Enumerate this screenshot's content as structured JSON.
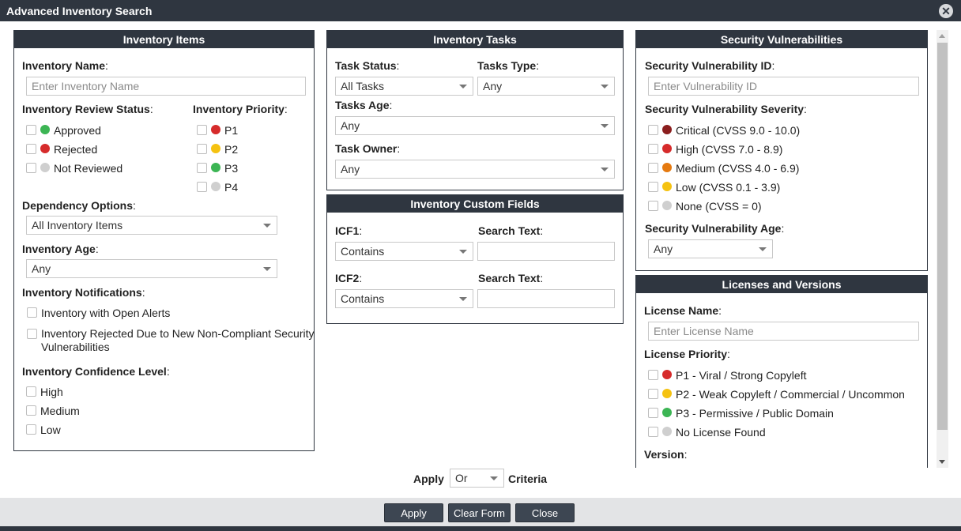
{
  "dialog": {
    "title": "Advanced Inventory Search",
    "close_icon": "close-circle-icon"
  },
  "inventory_items": {
    "header": "Inventory Items",
    "name_label": "Inventory Name",
    "name_placeholder": "Enter Inventory Name",
    "review_status_label": "Inventory Review Status",
    "review_status": [
      {
        "label": "Approved",
        "color": "#3cb554"
      },
      {
        "label": "Rejected",
        "color": "#d62b2b"
      },
      {
        "label": "Not Reviewed",
        "color": "#cfcfcf"
      }
    ],
    "priority_label": "Inventory Priority",
    "priorities": [
      {
        "label": "P1",
        "color": "#d62b2b"
      },
      {
        "label": "P2",
        "color": "#f5c211"
      },
      {
        "label": "P3",
        "color": "#3cb554"
      },
      {
        "label": "P4",
        "color": "#cfcfcf"
      }
    ],
    "dependency_label": "Dependency Options",
    "dependency_value": "All Inventory Items",
    "age_label": "Inventory Age",
    "age_value": "Any",
    "notifications_label": "Inventory Notifications",
    "notifications": [
      "Inventory with Open Alerts",
      "Inventory Rejected Due to New Non-Compliant Security",
      "Vulnerabilities"
    ],
    "confidence_label": "Inventory Confidence Level",
    "confidence_levels": [
      "High",
      "Medium",
      "Low"
    ]
  },
  "inventory_tasks": {
    "header": "Inventory Tasks",
    "status_label": "Task Status",
    "status_value": "All Tasks",
    "type_label": "Tasks Type",
    "type_value": "Any",
    "age_label": "Tasks Age",
    "age_value": "Any",
    "owner_label": "Task Owner",
    "owner_value": "Any"
  },
  "custom_fields": {
    "header": "Inventory Custom Fields",
    "icf1_label": "ICF1",
    "icf1_value": "Contains",
    "icf2_label": "ICF2",
    "icf2_value": "Contains",
    "search_text_label": "Search Text"
  },
  "security": {
    "header": "Security Vulnerabilities",
    "id_label": "Security Vulnerability ID",
    "id_placeholder": "Enter Vulnerability ID",
    "severity_label": "Security Vulnerability Severity",
    "severities": [
      {
        "label": "Critical (CVSS 9.0 - 10.0)",
        "color": "#8b1e1e"
      },
      {
        "label": "High (CVSS 7.0 - 8.9)",
        "color": "#d62b2b"
      },
      {
        "label": "Medium (CVSS 4.0 - 6.9)",
        "color": "#e57a10"
      },
      {
        "label": "Low (CVSS 0.1 - 3.9)",
        "color": "#f5c211"
      },
      {
        "label": "None (CVSS = 0)",
        "color": "#cfcfcf"
      }
    ],
    "age_label": "Security Vulnerability Age",
    "age_value": "Any"
  },
  "licenses": {
    "header": "Licenses and Versions",
    "name_label": "License Name",
    "name_placeholder": "Enter License Name",
    "priority_label": "License Priority",
    "priorities": [
      {
        "label": "P1 - Viral / Strong Copyleft",
        "color": "#d62b2b"
      },
      {
        "label": "P2 - Weak Copyleft / Commercial / Uncommon",
        "color": "#f5c211"
      },
      {
        "label": "P3 - Permissive / Public Domain",
        "color": "#3cb554"
      },
      {
        "label": "No License Found",
        "color": "#cfcfcf"
      }
    ],
    "version_label": "Version"
  },
  "criteria": {
    "apply_label": "Apply",
    "value": "Or",
    "criteria_label": "Criteria"
  },
  "footer": {
    "apply": "Apply",
    "clear": "Clear Form",
    "close": "Close"
  }
}
